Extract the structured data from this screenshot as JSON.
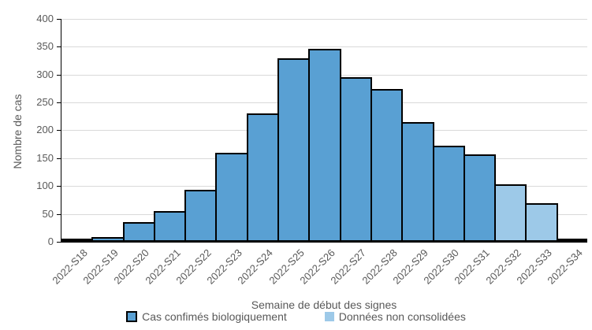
{
  "chart_data": {
    "type": "bar",
    "title": "",
    "xlabel": "Semaine de début des signes",
    "ylabel": "Nombre de cas",
    "ylim": [
      0,
      400
    ],
    "ytick_step": 50,
    "yticks": [
      0,
      50,
      100,
      150,
      200,
      250,
      300,
      350,
      400
    ],
    "grid": true,
    "legend_position": "bottom",
    "categories": [
      "2022-S18",
      "2022-S19",
      "2022-S20",
      "2022-S21",
      "2022-S22",
      "2022-S23",
      "2022-S24",
      "2022-S25",
      "2022-S26",
      "2022-S27",
      "2022-S28",
      "2022-S29",
      "2022-S30",
      "2022-S31",
      "2022-S32",
      "2022-S33",
      "2022-S34"
    ],
    "series": [
      {
        "name": "Cas confimés biologiquement",
        "color": "#59A0D3",
        "border_color": "#000000",
        "values": [
          2,
          6,
          32,
          53,
          91,
          157,
          228,
          327,
          344,
          293,
          272,
          212,
          170,
          154,
          0,
          0,
          0
        ]
      },
      {
        "name": "Données non consolidées",
        "color": "#9DC9E8",
        "border_color": "#000000",
        "values": [
          0,
          0,
          0,
          0,
          0,
          0,
          0,
          0,
          0,
          0,
          0,
          0,
          0,
          0,
          100,
          67,
          3
        ]
      }
    ]
  },
  "colors": {
    "axis": "#000000",
    "gridline": "#D9D9D9",
    "text": "#595959"
  }
}
